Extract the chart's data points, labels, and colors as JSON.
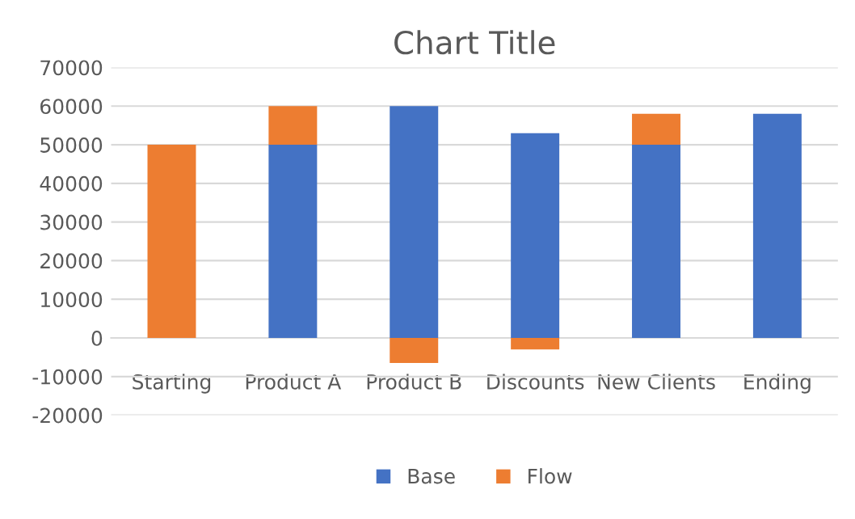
{
  "chart_data": {
    "type": "bar",
    "title": "Chart Title",
    "stacked": true,
    "categories": [
      "Starting",
      "Product A",
      "Product B",
      "Discounts",
      "New Clients",
      "Ending"
    ],
    "series": [
      {
        "name": "Base",
        "color": "#4472c4",
        "values": [
          0,
          50000,
          60000,
          53000,
          50000,
          58000
        ]
      },
      {
        "name": "Flow",
        "color": "#ed7d31",
        "values": [
          50000,
          10000,
          -6500,
          -3000,
          8000,
          0
        ]
      }
    ],
    "ylim": [
      -20000,
      70000
    ],
    "yticks": [
      -20000,
      -10000,
      0,
      10000,
      20000,
      30000,
      40000,
      50000,
      60000,
      70000
    ],
    "grid": "y",
    "legend": "bottom"
  }
}
